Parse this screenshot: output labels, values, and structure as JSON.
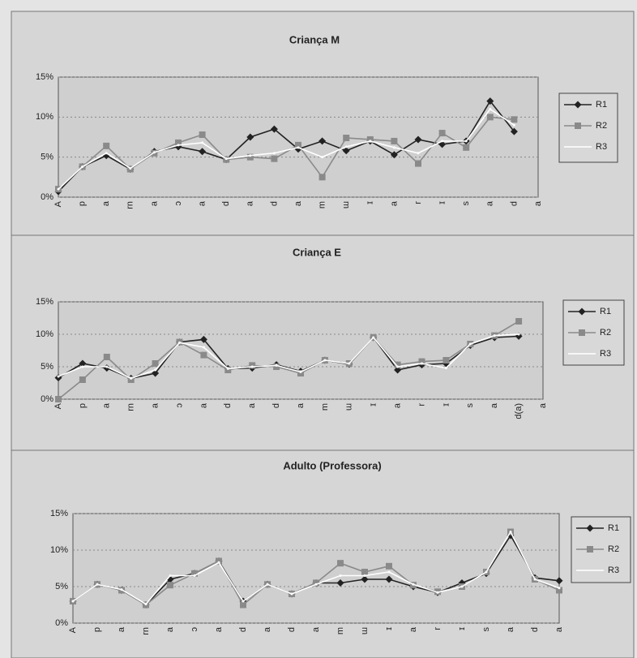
{
  "chart_data": [
    {
      "type": "line",
      "title": "Criança M",
      "categories": [
        "A",
        "p",
        "a",
        "rn",
        "a",
        "ɔ",
        "a",
        "d",
        "a",
        "d",
        "a",
        "m",
        "ɯ",
        "ɪ",
        "a",
        "r",
        "ɪ",
        "s",
        "a",
        "d",
        "a"
      ],
      "series": [
        {
          "name": "R1",
          "color": "#222222",
          "marker": "diamond",
          "values": [
            0.7,
            3.8,
            5.2,
            3.5,
            5.7,
            6.3,
            5.7,
            4.7,
            7.5,
            8.5,
            6,
            7,
            5.8,
            7,
            5.3,
            7.2,
            6.6,
            7,
            12,
            8.2,
            null
          ]
        },
        {
          "name": "R2",
          "color": "#8a8a8a",
          "marker": "square",
          "values": [
            1,
            3.8,
            6.4,
            3.5,
            5.5,
            6.8,
            7.8,
            4.7,
            5,
            4.8,
            6.5,
            2.5,
            7.4,
            7.2,
            7,
            4.2,
            8,
            6.2,
            10,
            9.7,
            null
          ]
        },
        {
          "name": "R3",
          "color": "#ffffff",
          "marker": "none",
          "values": [
            1,
            3.8,
            5.5,
            3.6,
            5.6,
            6.5,
            6.8,
            4.8,
            5.2,
            5.5,
            6.2,
            5,
            6.3,
            7,
            6.2,
            5.5,
            7,
            7,
            11,
            9,
            null
          ]
        }
      ],
      "ylim": [
        0,
        15
      ],
      "yticks": [
        {
          "value": 0,
          "label": "0%"
        },
        {
          "value": 5,
          "label": "5%"
        },
        {
          "value": 10,
          "label": "10%"
        },
        {
          "value": 15,
          "label": "15%"
        }
      ],
      "grid": true,
      "legend": "right"
    },
    {
      "type": "line",
      "title": "Criança E",
      "categories": [
        "A",
        "p",
        "a",
        "rn",
        "a",
        "ɔ",
        "a",
        "d",
        "a",
        "d",
        "a",
        "m",
        "ɯ",
        "ɪ",
        "a",
        "r",
        "ɪ",
        "s",
        "a",
        "d(a)",
        "a"
      ],
      "series": [
        {
          "name": "R1",
          "color": "#222222",
          "marker": "diamond",
          "values": [
            3.3,
            5.5,
            4.8,
            3.2,
            4,
            8.8,
            9.2,
            4.7,
            4.8,
            5.3,
            4.3,
            6,
            5.4,
            9.5,
            4.5,
            5.3,
            5.5,
            8.3,
            9.5,
            9.7,
            null
          ]
        },
        {
          "name": "R2",
          "color": "#8a8a8a",
          "marker": "square",
          "values": [
            0,
            3,
            6.5,
            3,
            5.5,
            8.8,
            6.8,
            4.5,
            5.2,
            5,
            4,
            6,
            5.5,
            9.5,
            5.3,
            5.8,
            6,
            8.5,
            9.8,
            12,
            null
          ]
        },
        {
          "name": "R3",
          "color": "#ffffff",
          "marker": "none",
          "values": [
            3.5,
            5,
            5,
            3.2,
            4.5,
            8.7,
            8,
            4.7,
            5,
            5.2,
            4.2,
            6,
            5.5,
            9.5,
            5,
            5.5,
            4.8,
            8.5,
            9.8,
            10,
            null
          ]
        }
      ],
      "ylim": [
        0,
        15
      ],
      "yticks": [
        {
          "value": 0,
          "label": "0%"
        },
        {
          "value": 5,
          "label": "5%"
        },
        {
          "value": 10,
          "label": "10%"
        },
        {
          "value": 15,
          "label": "15%"
        }
      ],
      "grid": true,
      "legend": "right"
    },
    {
      "type": "line",
      "title": "Adulto (Professora)",
      "categories": [
        "A",
        "p",
        "a",
        "rn",
        "a",
        "ɔ",
        "a",
        "d",
        "a",
        "d",
        "a",
        "m",
        "ɯ",
        "ɪ",
        "a",
        "r",
        "ɪ",
        "s",
        "a",
        "d",
        "a"
      ],
      "series": [
        {
          "name": "R1",
          "color": "#222222",
          "marker": "diamond",
          "values": [
            3,
            5.3,
            4.5,
            2.5,
            6,
            6.8,
            8.5,
            3,
            5.3,
            4,
            5.5,
            5.5,
            6,
            6,
            5,
            4.2,
            5.5,
            6.8,
            12,
            6.2,
            5.8
          ]
        },
        {
          "name": "R2",
          "color": "#8a8a8a",
          "marker": "square",
          "values": [
            3,
            5.3,
            4.5,
            2.5,
            5.2,
            6.8,
            8.5,
            2.5,
            5.3,
            4,
            5.5,
            8.2,
            7,
            7.8,
            5.2,
            4.3,
            5,
            7,
            12.5,
            6,
            4.5
          ]
        },
        {
          "name": "R3",
          "color": "#ffffff",
          "marker": "none",
          "values": [
            3,
            5.3,
            4.6,
            2.6,
            6.5,
            6.5,
            8.3,
            3,
            5.3,
            4,
            5.3,
            6.5,
            6.5,
            7,
            5.3,
            4.2,
            5,
            7,
            12.5,
            6,
            4.8
          ]
        }
      ],
      "ylim": [
        0,
        15
      ],
      "yticks": [
        {
          "value": 0,
          "label": "0%"
        },
        {
          "value": 5,
          "label": "5%"
        },
        {
          "value": 10,
          "label": "10%"
        },
        {
          "value": 15,
          "label": "15%"
        }
      ],
      "grid": true,
      "legend": "right"
    }
  ]
}
